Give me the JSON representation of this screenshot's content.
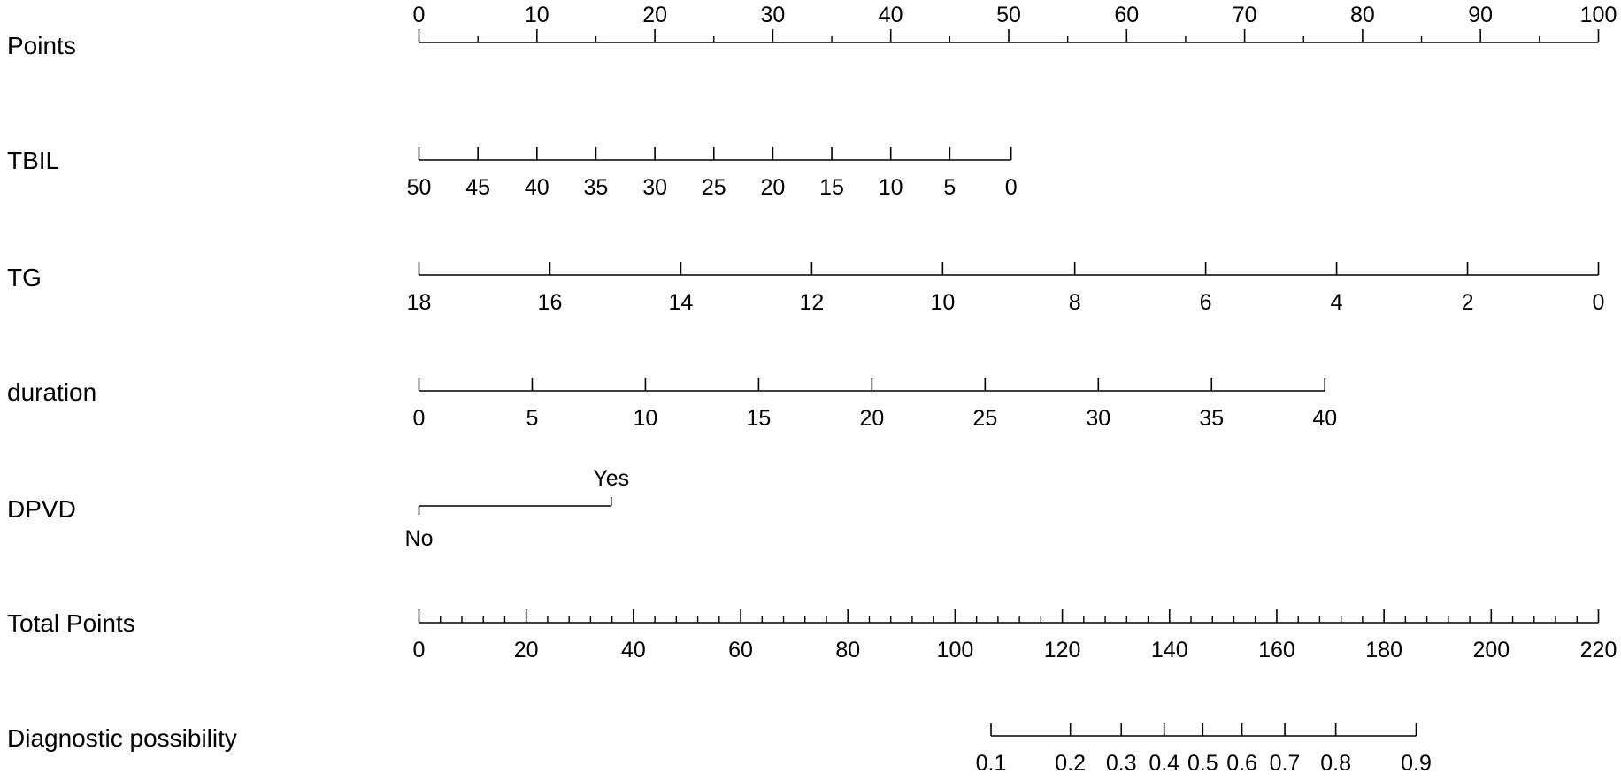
{
  "chart_data": {
    "type": "nomogram",
    "rows": [
      {
        "label": "Points",
        "kind": "points",
        "ticks": [
          {
            "value": 0,
            "points": 0
          },
          {
            "value": 10,
            "points": 10
          },
          {
            "value": 20,
            "points": 20
          },
          {
            "value": 30,
            "points": 30
          },
          {
            "value": 40,
            "points": 40
          },
          {
            "value": 50,
            "points": 50
          },
          {
            "value": 60,
            "points": 60
          },
          {
            "value": 70,
            "points": 70
          },
          {
            "value": 80,
            "points": 80
          },
          {
            "value": 90,
            "points": 90
          },
          {
            "value": 100,
            "points": 100
          }
        ]
      },
      {
        "label": "TBIL",
        "kind": "variable",
        "ticks": [
          {
            "value": 50,
            "points": 0
          },
          {
            "value": 45,
            "points": 5
          },
          {
            "value": 40,
            "points": 10
          },
          {
            "value": 35,
            "points": 15
          },
          {
            "value": 30,
            "points": 20
          },
          {
            "value": 25,
            "points": 25
          },
          {
            "value": 20,
            "points": 30
          },
          {
            "value": 15,
            "points": 35
          },
          {
            "value": 10,
            "points": 40
          },
          {
            "value": 5,
            "points": 45
          },
          {
            "value": 0,
            "points": 50.2
          }
        ]
      },
      {
        "label": "TG",
        "kind": "variable",
        "ticks": [
          {
            "value": 18,
            "points": 0
          },
          {
            "value": 16,
            "points": 11.1
          },
          {
            "value": 14,
            "points": 22.2
          },
          {
            "value": 12,
            "points": 33.3
          },
          {
            "value": 10,
            "points": 44.4
          },
          {
            "value": 8,
            "points": 55.6
          },
          {
            "value": 6,
            "points": 66.7
          },
          {
            "value": 4,
            "points": 77.8
          },
          {
            "value": 2,
            "points": 88.9
          },
          {
            "value": 0,
            "points": 100
          }
        ]
      },
      {
        "label": "duration",
        "kind": "variable",
        "ticks": [
          {
            "value": 0,
            "points": 0
          },
          {
            "value": 5,
            "points": 9.6
          },
          {
            "value": 10,
            "points": 19.2
          },
          {
            "value": 15,
            "points": 28.8
          },
          {
            "value": 20,
            "points": 38.4
          },
          {
            "value": 25,
            "points": 48.0
          },
          {
            "value": 30,
            "points": 57.6
          },
          {
            "value": 35,
            "points": 67.2
          },
          {
            "value": 40,
            "points": 76.8
          }
        ]
      },
      {
        "label": "DPVD",
        "kind": "categorical",
        "ticks": [
          {
            "value": "No",
            "points": 0,
            "label_pos": "below"
          },
          {
            "value": "Yes",
            "points": 16.3,
            "label_pos": "above"
          }
        ]
      },
      {
        "label": "Total Points",
        "kind": "total",
        "max": 220,
        "ticks": [
          {
            "value": 0,
            "total": 0
          },
          {
            "value": 20,
            "total": 20
          },
          {
            "value": 40,
            "total": 40
          },
          {
            "value": 60,
            "total": 60
          },
          {
            "value": 80,
            "total": 80
          },
          {
            "value": 100,
            "total": 100
          },
          {
            "value": 120,
            "total": 120
          },
          {
            "value": 140,
            "total": 140
          },
          {
            "value": 160,
            "total": 160
          },
          {
            "value": 180,
            "total": 180
          },
          {
            "value": 200,
            "total": 200
          },
          {
            "value": 220,
            "total": 220
          }
        ]
      },
      {
        "label": "Diagnostic possibility",
        "kind": "probability",
        "ticks": [
          {
            "value": "0.1",
            "total": 106.7
          },
          {
            "value": "0.2",
            "total": 121.5
          },
          {
            "value": "0.3",
            "total": 131.0
          },
          {
            "value": "0.4",
            "total": 139.0
          },
          {
            "value": "0.5",
            "total": 146.2
          },
          {
            "value": "0.6",
            "total": 153.5
          },
          {
            "value": "0.7",
            "total": 161.5
          },
          {
            "value": "0.8",
            "total": 171.0
          },
          {
            "value": "0.9",
            "total": 186.0
          }
        ]
      }
    ]
  }
}
